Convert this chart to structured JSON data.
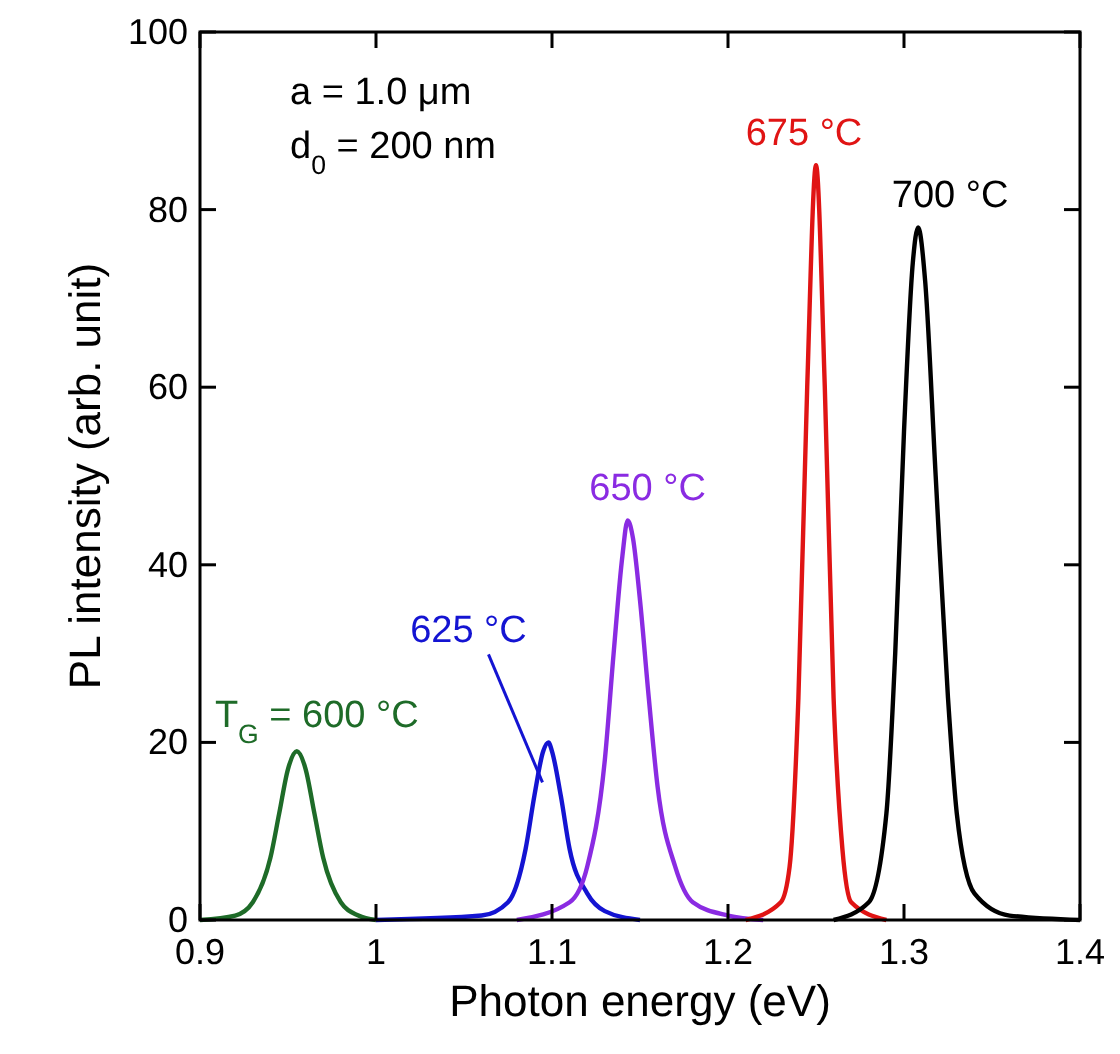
{
  "chart_data": {
    "type": "line",
    "xlabel": "Photon energy (eV)",
    "ylabel": "PL intensity (arb. unit)",
    "xlim": [
      0.9,
      1.4
    ],
    "ylim": [
      0,
      100
    ],
    "xticks": [
      0.9,
      1,
      1.1,
      1.2,
      1.3,
      1.4
    ],
    "yticks": [
      0,
      20,
      40,
      60,
      80,
      100
    ],
    "grid": false,
    "annotations": [
      "a = 1.0 μm",
      "d$_{0}$ = 200 nm"
    ],
    "series": [
      {
        "name": "T$_{G}$ = 600 °C",
        "color": "#1e6b28",
        "x": [
          0.9,
          0.92,
          0.93,
          0.94,
          0.945,
          0.95,
          0.955,
          0.96,
          0.965,
          0.97,
          0.98,
          0.99,
          1.0
        ],
        "values": [
          0,
          0.5,
          2,
          7,
          12,
          17,
          19,
          17,
          12,
          7,
          2,
          0.5,
          0
        ]
      },
      {
        "name": "625 °C",
        "color": "#1414d2",
        "x": [
          1.0,
          1.06,
          1.075,
          1.085,
          1.09,
          1.095,
          1.098,
          1.1,
          1.105,
          1.11,
          1.12,
          1.13,
          1.15
        ],
        "values": [
          0,
          0.5,
          2,
          8,
          14,
          19,
          20,
          19,
          14,
          8,
          3,
          1,
          0
        ]
      },
      {
        "name": "650 °C",
        "color": "#8a2be2",
        "x": [
          1.08,
          1.11,
          1.12,
          1.13,
          1.135,
          1.14,
          1.143,
          1.146,
          1.15,
          1.155,
          1.16,
          1.17,
          1.18,
          1.2,
          1.22
        ],
        "values": [
          0,
          2,
          6,
          18,
          30,
          41,
          45,
          43,
          36,
          25,
          15,
          6,
          2,
          0.5,
          0
        ]
      },
      {
        "name": "675 °C",
        "color": "#e01414",
        "x": [
          1.21,
          1.23,
          1.235,
          1.24,
          1.245,
          1.25,
          1.255,
          1.26,
          1.265,
          1.27,
          1.29
        ],
        "values": [
          0,
          2,
          6,
          25,
          60,
          85,
          60,
          25,
          8,
          2,
          0
        ]
      },
      {
        "name": "700 °C",
        "color": "#000000",
        "x": [
          1.26,
          1.28,
          1.29,
          1.295,
          1.3,
          1.305,
          1.308,
          1.312,
          1.318,
          1.325,
          1.33,
          1.34,
          1.36,
          1.4
        ],
        "values": [
          0,
          2,
          12,
          30,
          55,
          74,
          78,
          72,
          50,
          25,
          12,
          3,
          0.5,
          0
        ]
      }
    ]
  }
}
